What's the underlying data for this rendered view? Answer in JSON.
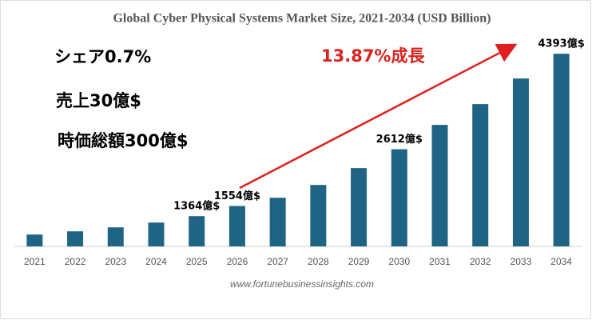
{
  "chart_data": {
    "type": "bar",
    "title": "Global Cyber Physical Systems Market Size, 2021-2034 (USD Billion)",
    "categories": [
      "2021",
      "2022",
      "2023",
      "2024",
      "2025",
      "2026",
      "2027",
      "2028",
      "2029",
      "2030",
      "2031",
      "2032",
      "2033",
      "2034"
    ],
    "values": [
      1021,
      1081,
      1155,
      1245,
      1364,
      1554,
      1707,
      1946,
      2260,
      2612,
      3066,
      3454,
      3931,
      4393
    ],
    "value_labels": [
      null,
      null,
      null,
      null,
      "1364億$",
      "1554億$",
      null,
      null,
      null,
      "2612億$",
      null,
      null,
      null,
      "4393億$"
    ],
    "color": "#1f6385",
    "ylim": [
      800,
      4500
    ],
    "annotations": [
      "シェア0.7%",
      "売上30億$",
      "時価総額300億$",
      "13.87%成長"
    ],
    "source": "www.fortunebusinessinsights.com"
  }
}
